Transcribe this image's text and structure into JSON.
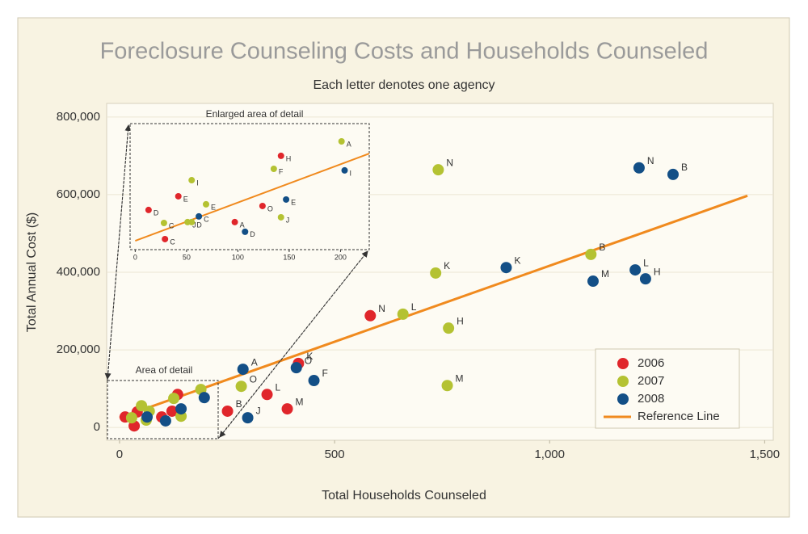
{
  "chart_data": {
    "type": "scatter",
    "title": "Foreclosure Counseling Costs and Households Counseled",
    "subtitle": "Each letter denotes one agency",
    "xlabel": "Total Households Counseled",
    "ylabel": "Total Annual Cost ($)",
    "xlim": [
      -30,
      1520
    ],
    "ylim": [
      -33000,
      835000
    ],
    "xticks": [
      0,
      500,
      {
        "value": 1000,
        "label": "1,000"
      },
      {
        "value": 1500,
        "label": "1,500"
      }
    ],
    "yticks": [
      0,
      {
        "value": 200000,
        "label": "200,000"
      },
      {
        "value": 400000,
        "label": "400,000"
      },
      {
        "value": 600000,
        "label": "600,000"
      },
      {
        "value": 800000,
        "label": "800,000"
      }
    ],
    "grid": true,
    "legend": "lower right",
    "series": [
      {
        "name": "2006",
        "color": "#e0262b",
        "x": [
          13,
          34,
          41,
          98,
          122,
          135,
          251,
          343,
          390,
          416,
          583
        ],
        "y": [
          27000,
          4000,
          40000,
          27000,
          42000,
          85000,
          42000,
          85000,
          48000,
          165000,
          288000
        ],
        "labels": [
          null,
          null,
          null,
          null,
          null,
          null,
          "B",
          "L",
          "M",
          "K",
          "N"
        ]
      },
      {
        "name": "2007",
        "color": "#b4c232",
        "x": [
          28,
          51,
          62,
          69,
          126,
          143,
          189,
          283,
          735,
          741,
          659,
          765,
          762,
          1096
        ],
        "y": [
          25000,
          56000,
          19000,
          42000,
          75000,
          29000,
          98000,
          106000,
          398000,
          664000,
          292000,
          256000,
          108000,
          446000
        ],
        "labels": [
          null,
          null,
          null,
          null,
          null,
          null,
          null,
          "O",
          "K",
          "N",
          "L",
          "H",
          "M",
          "B"
        ]
      },
      {
        "name": "2008",
        "color": "#134f86",
        "x": [
          64,
          107,
          143,
          197,
          287,
          298,
          411,
          452,
          899,
          1101,
          1199,
          1223,
          1208,
          1287
        ],
        "y": [
          27000,
          17000,
          48000,
          77000,
          150000,
          25000,
          154000,
          121000,
          412000,
          377000,
          406000,
          383000,
          669000,
          652000
        ],
        "labels": [
          null,
          null,
          null,
          null,
          "A",
          "J",
          "O",
          "F",
          "K",
          "M",
          "L",
          "H",
          "N",
          "B"
        ]
      }
    ],
    "reference_line": {
      "name": "Reference Line",
      "color": "#f08a1e",
      "x": [
        0,
        1460
      ],
      "y": [
        25000,
        597000
      ]
    },
    "inset": {
      "title": "Enlarged area of detail",
      "area_label": "Area of detail",
      "xlim": [
        -5,
        228
      ],
      "ylim": [
        16000,
        145000
      ],
      "xticks": [
        0,
        50,
        100,
        150,
        200
      ],
      "series": [
        {
          "x": [
            13,
            29,
            42,
            97,
            124,
            142
          ],
          "y": [
            56600,
            26800,
            70600,
            44200,
            60700,
            112000
          ],
          "labels": [
            "D",
            "C",
            "E",
            "A",
            "O",
            "H"
          ]
        },
        {
          "x": [
            28,
            51,
            55,
            55,
            69,
            135,
            142,
            201
          ],
          "y": [
            43300,
            44200,
            87100,
            44200,
            62400,
            98700,
            49100,
            126800
          ],
          "labels": [
            "C",
            "J",
            "I",
            "D",
            "E",
            "F",
            "J",
            "A"
          ]
        },
        {
          "x": [
            62,
            107,
            147,
            204
          ],
          "y": [
            50000,
            34300,
            67300,
            97100
          ],
          "labels": [
            "C",
            "D",
            "E",
            "I"
          ]
        }
      ]
    }
  }
}
